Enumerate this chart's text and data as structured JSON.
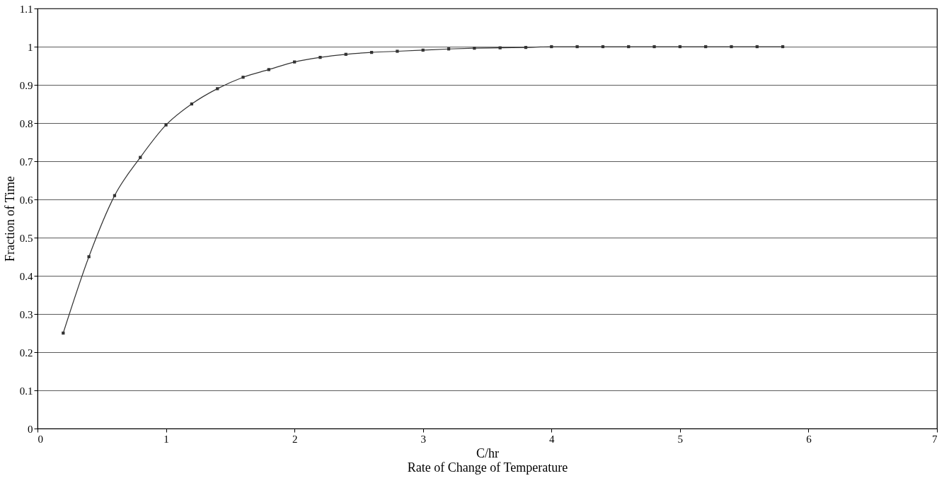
{
  "chart_data": {
    "type": "line",
    "xlabel": "Rate of Change of Temperature",
    "ylabel": "Fraction of Time",
    "annotations": [
      "C/hr"
    ],
    "x": [
      0.2,
      0.4,
      0.6,
      0.8,
      1.0,
      1.2,
      1.4,
      1.6,
      1.8,
      2.0,
      2.2,
      2.4,
      2.6,
      2.8,
      3.0,
      3.2,
      3.4,
      3.6,
      3.8,
      4.0,
      4.2,
      4.4,
      4.6,
      4.8,
      5.0,
      5.2,
      5.4,
      5.6,
      5.8
    ],
    "series": [
      {
        "color": "#333333",
        "values": [
          0.25,
          0.45,
          0.61,
          0.71,
          0.795,
          0.85,
          0.89,
          0.92,
          0.94,
          0.96,
          0.972,
          0.98,
          0.985,
          0.988,
          0.991,
          0.994,
          0.996,
          0.997,
          0.998,
          1.0,
          1.0,
          1.0,
          1.0,
          1.0,
          1.0,
          1.0,
          1.0,
          1.0,
          1.0
        ]
      }
    ],
    "xlim": [
      0,
      7
    ],
    "xticks": [
      0,
      1,
      2,
      3,
      4,
      5,
      6,
      7
    ],
    "ylim": [
      0,
      1.1
    ],
    "yticks": [
      0,
      0.1,
      0.2,
      0.3,
      0.4,
      0.5,
      0.6,
      0.7,
      0.8,
      0.9,
      1,
      1.1
    ],
    "grid": "y",
    "marker": "square",
    "line_style": "solid"
  }
}
